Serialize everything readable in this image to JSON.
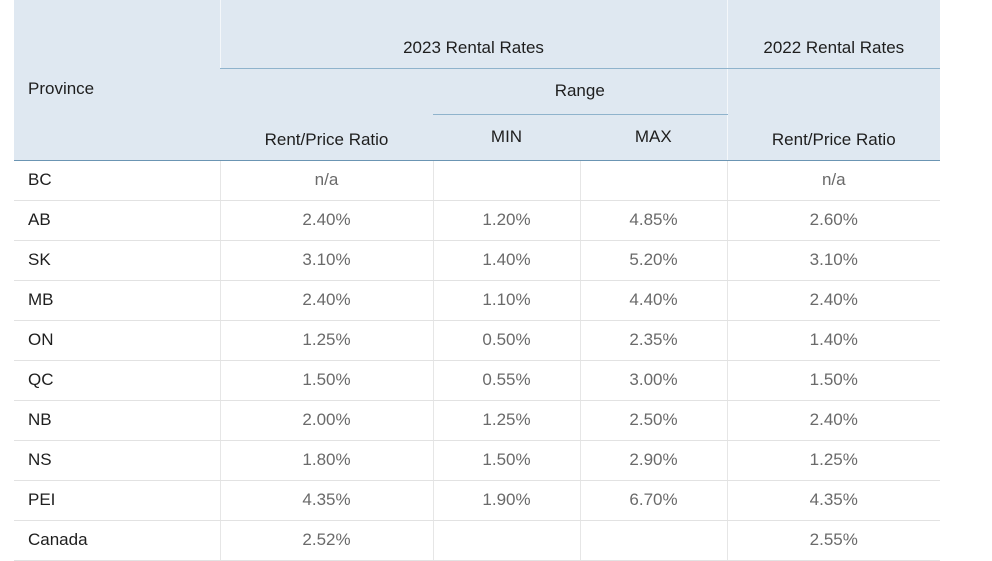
{
  "table": {
    "header": {
      "group_2023": "2023 Rental Rates",
      "group_2022": "2022 Rental Rates",
      "range": "Range",
      "province": "Province",
      "ratio_2023": "Rent/Price Ratio",
      "min": "MIN",
      "max": "MAX",
      "ratio_2022": "Rent/Price Ratio"
    },
    "rows": [
      [
        "BC",
        "n/a",
        null,
        null,
        "n/a"
      ],
      [
        "AB",
        "2.40%",
        "1.20%",
        "4.85%",
        "2.60%"
      ],
      [
        "SK",
        "3.10%",
        "1.40%",
        "5.20%",
        "3.10%"
      ],
      [
        "MB",
        "2.40%",
        "1.10%",
        "4.40%",
        "2.40%"
      ],
      [
        "ON",
        "1.25%",
        "0.50%",
        "2.35%",
        "1.40%"
      ],
      [
        "QC",
        "1.50%",
        "0.55%",
        "3.00%",
        "1.50%"
      ],
      [
        "NB",
        "2.00%",
        "1.25%",
        "2.50%",
        "2.40%"
      ],
      [
        "NS",
        "1.80%",
        "1.50%",
        "2.90%",
        "1.25%"
      ],
      [
        "PEI",
        "4.35%",
        "1.90%",
        "6.70%",
        "4.35%"
      ],
      [
        "Canada",
        "2.52%",
        null,
        null,
        "2.55%"
      ]
    ]
  }
}
